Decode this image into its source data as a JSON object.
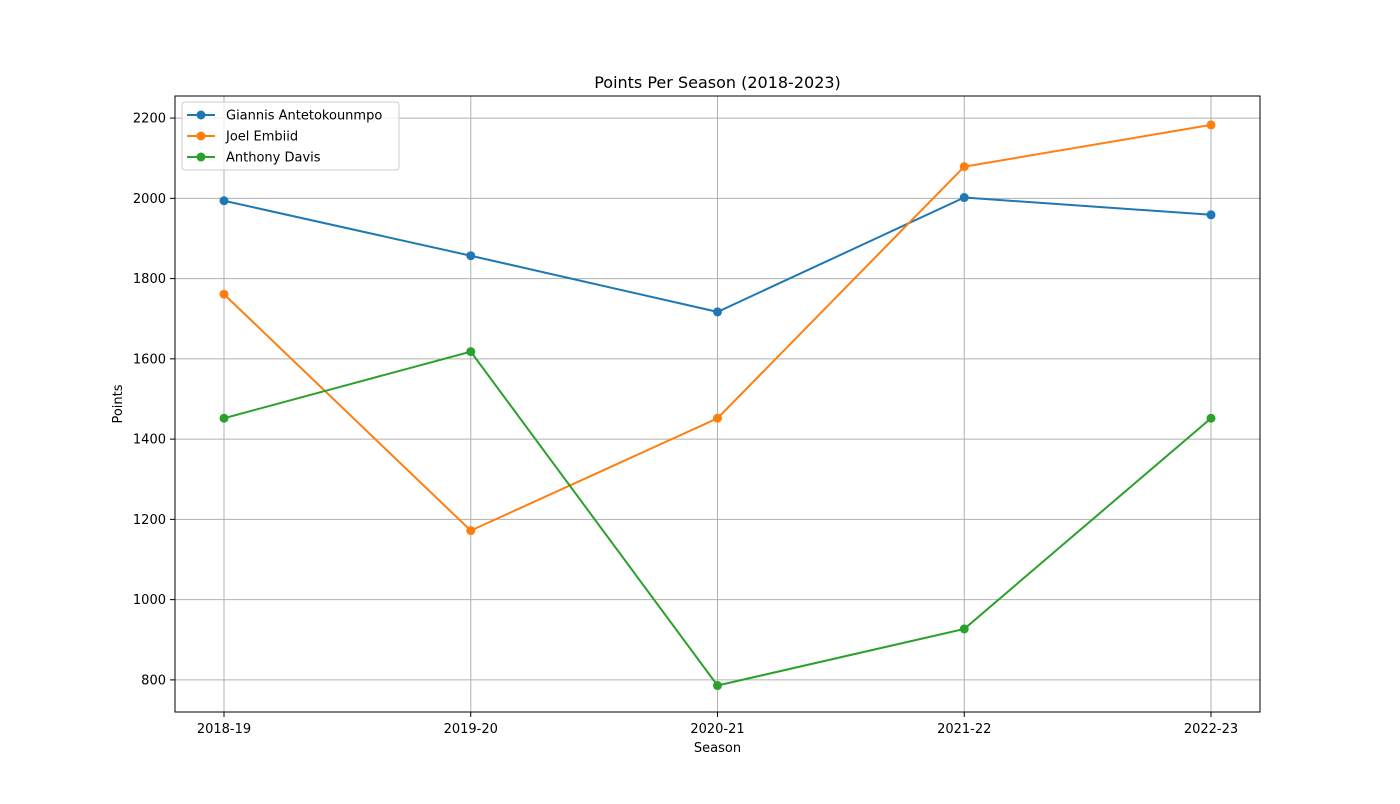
{
  "chart_data": {
    "type": "line",
    "title": "Points Per Season (2018-2023)",
    "xlabel": "Season",
    "ylabel": "Points",
    "categories": [
      "2018-19",
      "2019-20",
      "2020-21",
      "2021-22",
      "2022-23"
    ],
    "ylim": [
      720,
      2255
    ],
    "yticks": [
      800,
      1000,
      1200,
      1400,
      1600,
      1800,
      2000,
      2200
    ],
    "grid": true,
    "legend_position": "top-left",
    "series": [
      {
        "name": "Giannis Antetokounmpo",
        "color": "#1f77b4",
        "values": [
          1994,
          1857,
          1717,
          2002,
          1959
        ]
      },
      {
        "name": "Joel Embiid",
        "color": "#ff7f0e",
        "values": [
          1761,
          1172,
          1452,
          2079,
          2183
        ]
      },
      {
        "name": "Anthony Davis",
        "color": "#2ca02c",
        "values": [
          1452,
          1618,
          786,
          927,
          1452
        ]
      }
    ]
  }
}
